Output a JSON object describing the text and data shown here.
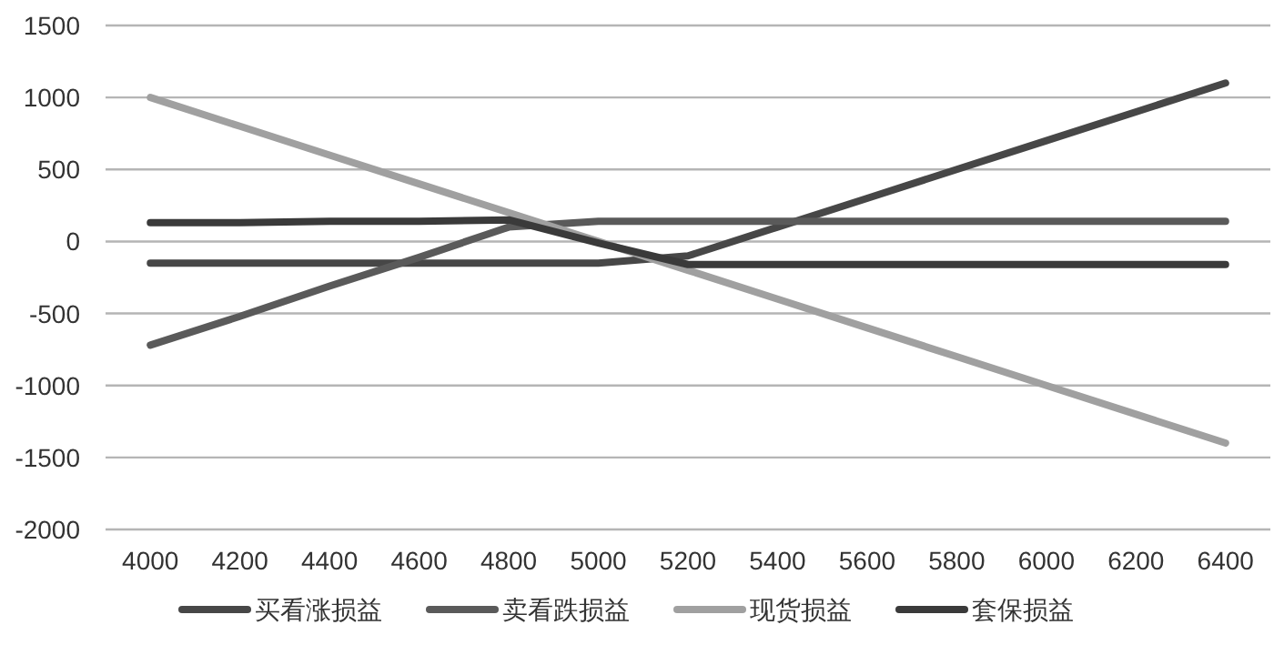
{
  "chart_data": {
    "type": "line",
    "categories": [
      "4000",
      "4200",
      "4400",
      "4600",
      "4800",
      "5000",
      "5200",
      "5400",
      "5600",
      "5800",
      "6000",
      "6200",
      "6400"
    ],
    "series": [
      {
        "name": "买看涨损益",
        "color": "#474747",
        "values": [
          -150,
          -150,
          -150,
          -150,
          -150,
          -150,
          -100,
          100,
          300,
          500,
          700,
          900,
          1100
        ]
      },
      {
        "name": "卖看跌损益",
        "color": "#5a5a5a",
        "values": [
          -720,
          -520,
          -310,
          -110,
          100,
          140,
          140,
          140,
          140,
          140,
          140,
          140,
          140
        ]
      },
      {
        "name": "现货损益",
        "color": "#a0a0a0",
        "values": [
          1000,
          800,
          600,
          400,
          200,
          0,
          -200,
          -400,
          -600,
          -800,
          -1000,
          -1200,
          -1400
        ]
      },
      {
        "name": "套保损益",
        "color": "#3a3a3a",
        "values": [
          130,
          130,
          140,
          140,
          150,
          -10,
          -160,
          -160,
          -160,
          -160,
          -160,
          -160,
          -160
        ]
      }
    ],
    "ylim": [
      -2000,
      1500
    ],
    "yticks": [
      -2000,
      -1500,
      -1000,
      -500,
      0,
      500,
      1000,
      1500
    ],
    "grid": "y",
    "legend": "bottom",
    "line_style": "solid",
    "marker": "none"
  }
}
